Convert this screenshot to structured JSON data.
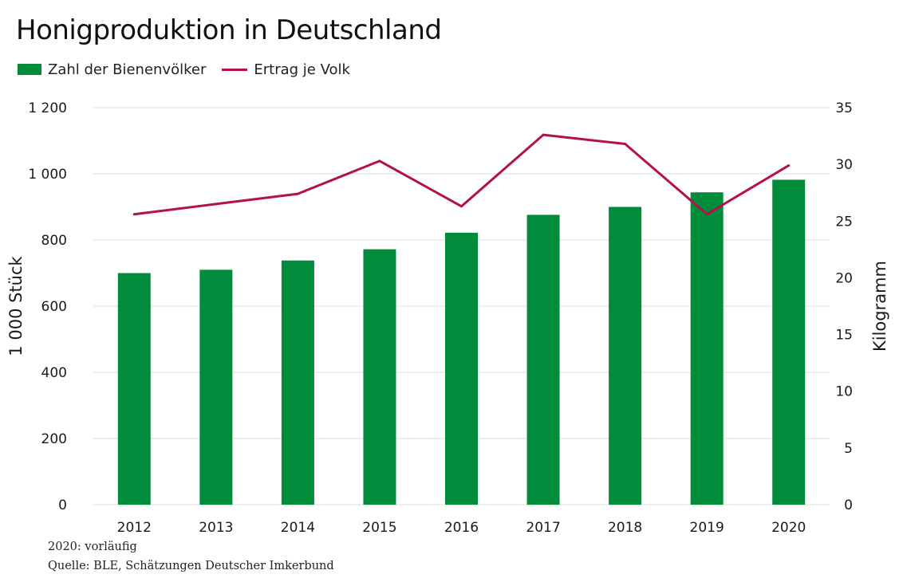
{
  "title": "Honigproduktion in Deutschland",
  "legend": {
    "bars_label": "Zahl der Bienenvölker",
    "line_label": "Ertrag je Volk"
  },
  "colors": {
    "bars": "#008C3A",
    "line": "#B5104E",
    "grid": "#dddddd"
  },
  "footnote": "2020: vorläufig",
  "source": "Quelle: BLE, Schätzungen Deutscher Imkerbund",
  "chart_data": {
    "type": "bar",
    "title": "Honigproduktion in Deutschland",
    "categories": [
      "2012",
      "2013",
      "2014",
      "2015",
      "2016",
      "2017",
      "2018",
      "2019",
      "2020"
    ],
    "series": [
      {
        "name": "Zahl der Bienenvölker",
        "type": "bar",
        "axis": "left",
        "values": [
          700,
          710,
          738,
          772,
          822,
          876,
          900,
          944,
          982
        ]
      },
      {
        "name": "Ertrag je Volk",
        "type": "line",
        "axis": "right",
        "values": [
          25.6,
          26.5,
          27.4,
          30.3,
          26.3,
          32.6,
          31.8,
          25.6,
          29.9
        ]
      }
    ],
    "ylabel_left": "1 000 Stück",
    "ylabel_right": "Kilogramm",
    "ylim_left": [
      0,
      1200
    ],
    "ylim_right": [
      0,
      35
    ],
    "yticks_left": [
      "0",
      "200",
      "400",
      "600",
      "800",
      "1 000",
      "1 200"
    ],
    "yticks_right": [
      "0",
      "5",
      "10",
      "15",
      "20",
      "25",
      "30",
      "35"
    ],
    "grid": true,
    "legend_position": "top-left"
  }
}
